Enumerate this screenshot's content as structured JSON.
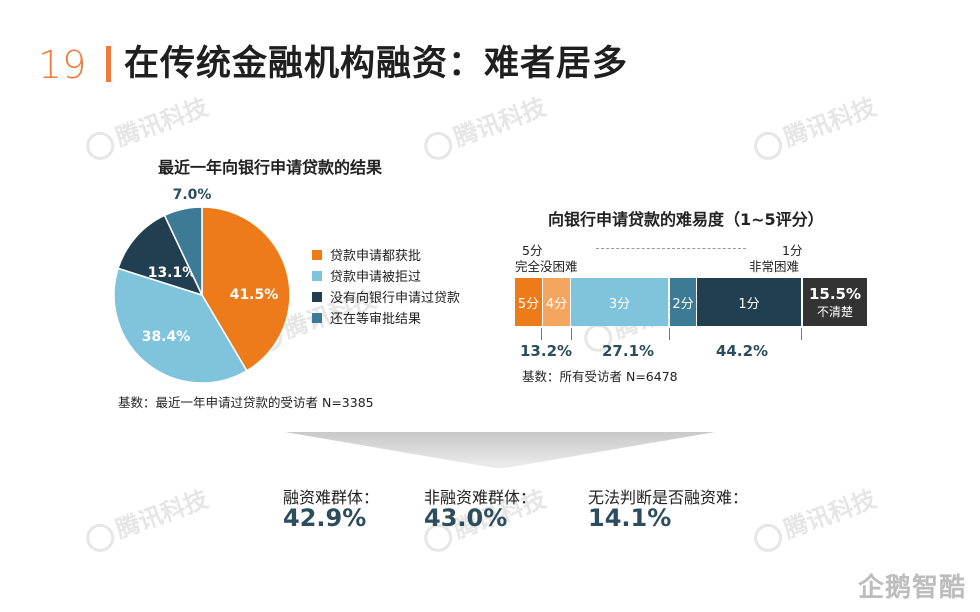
{
  "slide_number": "19",
  "title": "在传统金融机构融资：难者居多",
  "watermark": "腾讯科技",
  "footer_logo": "企鹅智酷",
  "colors": {
    "orange": "#ee7b1a",
    "light_blue": "#7fc3dc",
    "navy": "#223f52",
    "teal": "#3d7a95",
    "bar_orange_light": "#f4a661",
    "unclear_dark": "#333333"
  },
  "chart_data": [
    {
      "type": "pie",
      "title": "最近一年向银行申请贷款的结果",
      "slices": [
        {
          "label": "贷款申请都获批",
          "value": 41.5,
          "display": "41.5%",
          "color": "#ee7b1a"
        },
        {
          "label": "贷款申请被拒过",
          "value": 38.4,
          "display": "38.4%",
          "color": "#7fc3dc"
        },
        {
          "label": "没有向银行申请过贷款",
          "value": 13.1,
          "display": "13.1%",
          "color": "#223f52"
        },
        {
          "label": "还在等审批结果",
          "value": 7.0,
          "display": "7.0%",
          "color": "#3d7a95"
        }
      ],
      "legend_position": "right",
      "base_note": "基数：最近一年申请过贷款的受访者 N=3385"
    },
    {
      "type": "bar",
      "title": "向银行申请贷款的难易度（1~5评分）",
      "left_end": {
        "score": "5分",
        "desc": "完全没困难"
      },
      "right_end": {
        "score": "1分",
        "desc": "非常困难"
      },
      "segments": [
        {
          "label": "5分",
          "color": "#ee7b1a"
        },
        {
          "label": "4分",
          "color": "#f4a661"
        },
        {
          "label": "3分",
          "color": "#7fc3dc"
        },
        {
          "label": "2分",
          "color": "#3d7a95"
        },
        {
          "label": "1分",
          "color": "#223f52"
        }
      ],
      "groups": [
        {
          "label": "13.2%",
          "value": 13.2
        },
        {
          "label": "27.1%",
          "value": 27.1
        },
        {
          "label": "44.2%",
          "value": 44.2
        }
      ],
      "unclear": {
        "pct": "15.5%",
        "value": 15.5,
        "label": "不清楚"
      },
      "base_note": "基数：所有受访者 N=6478"
    }
  ],
  "summary": [
    {
      "label": "融资难群体：",
      "value": "42.9%"
    },
    {
      "label": "非融资难群体：",
      "value": "43.0%"
    },
    {
      "label": "无法判断是否融资难：",
      "value": "14.1%"
    }
  ]
}
